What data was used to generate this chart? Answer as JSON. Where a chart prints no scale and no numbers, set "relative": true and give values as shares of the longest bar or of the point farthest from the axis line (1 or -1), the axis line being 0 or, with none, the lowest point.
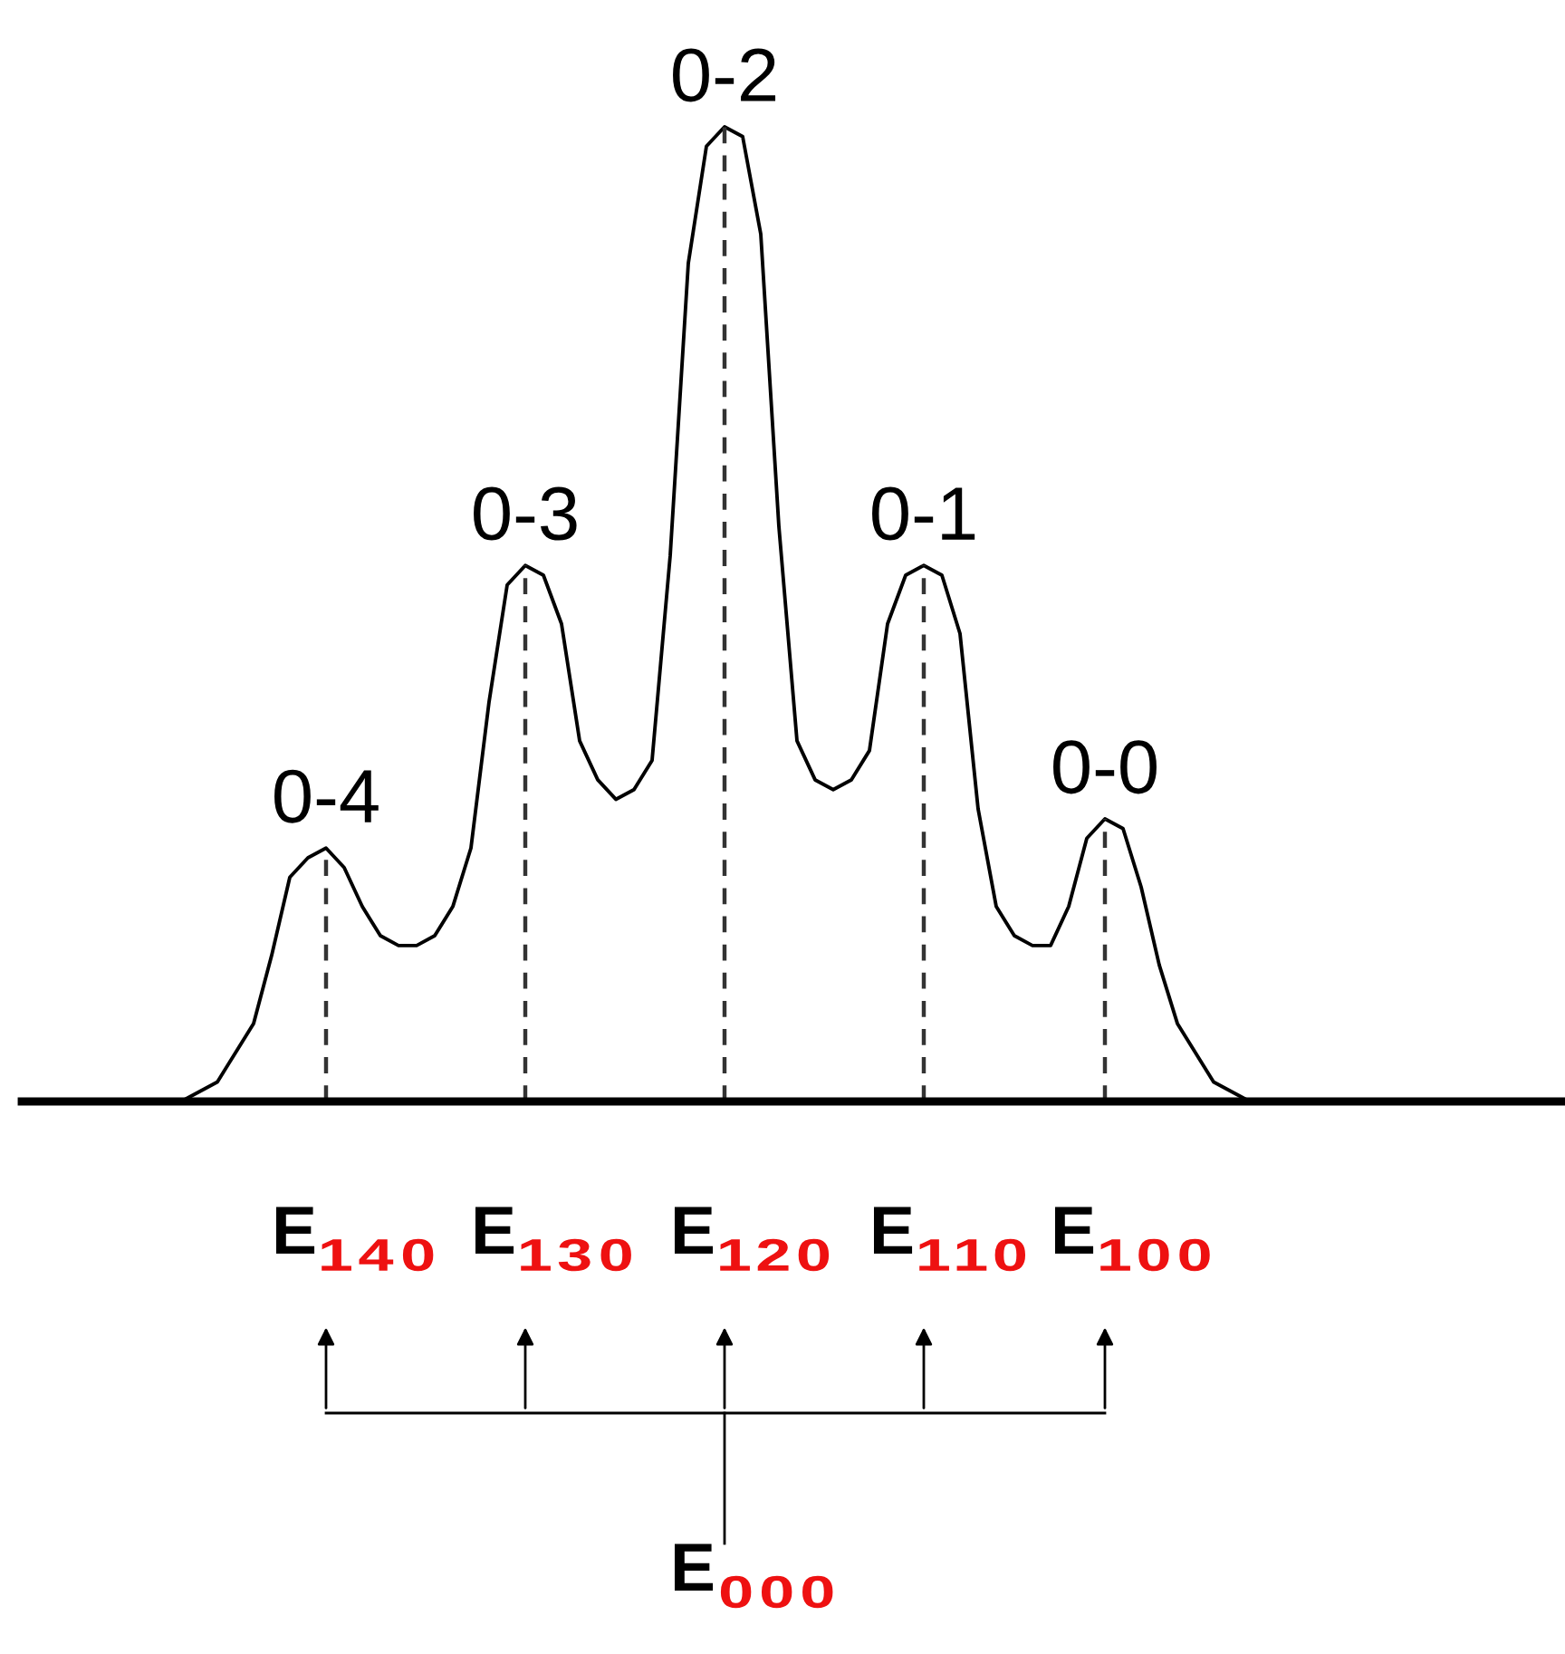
{
  "chart_data": {
    "type": "line",
    "relative": true,
    "color": "#000000",
    "categories": [
      null,
      null,
      null,
      null,
      null,
      null,
      null,
      null,
      null,
      null,
      null,
      null,
      null,
      null,
      null,
      null,
      null,
      null,
      null,
      null,
      null,
      null,
      null,
      null,
      null,
      null,
      null,
      null,
      null,
      null,
      null,
      null,
      null,
      null,
      null,
      null,
      null,
      null,
      null,
      null,
      null,
      null,
      null,
      null,
      null,
      null,
      null,
      null,
      null,
      null,
      null,
      null,
      null,
      null,
      null,
      null,
      null,
      null,
      null,
      null,
      null,
      null
    ],
    "values": [
      0,
      0.01,
      0.02,
      0.05,
      0.08,
      0.15,
      0.23,
      0.25,
      0.26,
      0.24,
      0.2,
      0.17,
      0.16,
      0.16,
      0.17,
      0.2,
      0.26,
      0.41,
      0.53,
      0.55,
      0.54,
      0.49,
      0.37,
      0.33,
      0.31,
      0.32,
      0.35,
      0.56,
      0.86,
      0.98,
      1,
      0.99,
      0.89,
      0.59,
      0.37,
      0.33,
      0.32,
      0.33,
      0.36,
      0.49,
      0.54,
      0.55,
      0.54,
      0.48,
      0.3,
      0.2,
      0.17,
      0.16,
      0.16,
      0.2,
      0.27,
      0.29,
      0.28,
      0.22,
      0.14,
      0.08,
      0.05,
      0.02,
      0.01,
      0,
      0,
      0
    ],
    "annotations": [
      "0-4",
      "0-3",
      "0-2",
      "0-1",
      "0-0",
      "E₁₄₀",
      "E₁₃₀",
      "E₁₂₀",
      "E₁₁₀",
      "E₁₀₀",
      "E₀₀₀"
    ],
    "grid": false,
    "legend": false
  }
}
